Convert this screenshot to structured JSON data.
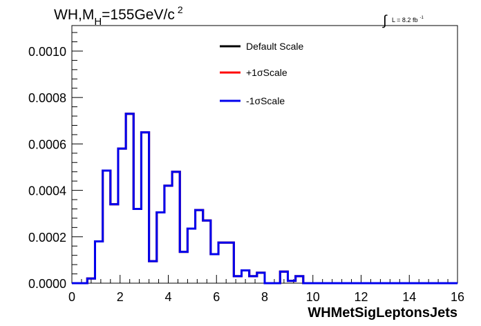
{
  "title": {
    "main_prefix": "WH,M",
    "main_sub": "H",
    "main_rest": "=155GeV/c",
    "main_sup": "2"
  },
  "lumi": {
    "integral": "∫",
    "text": "L = 8.2 fb",
    "sup": "-1"
  },
  "chart_data": {
    "type": "line",
    "title": "WH,MH=155GeV/c2",
    "xlabel": "WHMetSigLeptonsJets",
    "ylabel": "",
    "xlim": [
      0,
      16
    ],
    "ylim": [
      0,
      0.00111
    ],
    "x_ticks": [
      "0",
      "2",
      "4",
      "6",
      "8",
      "10",
      "12",
      "14",
      "16"
    ],
    "y_ticks": [
      "0.0000",
      "0.0002",
      "0.0004",
      "0.0006",
      "0.0008",
      "0.0010"
    ],
    "y_tick_values": [
      0,
      0.0002,
      0.0004,
      0.0006,
      0.0008,
      0.001
    ],
    "bin_width": 0.32,
    "legend_position": "top-center",
    "series": [
      {
        "name": "Default Scale",
        "color": "#000000",
        "bin_edges_start": 0,
        "values": [
          0,
          0,
          2e-05,
          0.00018,
          0.000485,
          0.00034,
          0.00058,
          0.00073,
          0.00032,
          0.00065,
          9.5e-05,
          0.000305,
          0.00042,
          0.00048,
          0.000135,
          0.000235,
          0.000315,
          0.00027,
          0.000125,
          0.000175,
          0.000175,
          3e-05,
          5.5e-05,
          3e-05,
          4.5e-05,
          0,
          0,
          5e-05,
          1e-05,
          3e-05,
          0,
          0,
          0,
          0,
          0,
          0,
          0,
          0,
          0,
          0,
          0,
          0,
          0,
          0,
          0,
          0,
          0,
          0,
          0,
          0
        ]
      },
      {
        "name": "+1σScale",
        "color": "#ff0000",
        "bin_edges_start": 0,
        "values": [
          0,
          0,
          2e-05,
          0.00018,
          0.000485,
          0.00034,
          0.00058,
          0.00073,
          0.00032,
          0.00065,
          9.5e-05,
          0.000305,
          0.00042,
          0.00048,
          0.000135,
          0.000235,
          0.000315,
          0.00027,
          0.000125,
          0.000175,
          0.000175,
          3e-05,
          5.5e-05,
          3e-05,
          4.5e-05,
          0,
          0,
          5e-05,
          1e-05,
          3e-05,
          0,
          0,
          0,
          0,
          0,
          0,
          0,
          0,
          0,
          0,
          0,
          0,
          0,
          0,
          0,
          0,
          0,
          0,
          0,
          0
        ]
      },
      {
        "name": "-1σScale",
        "color": "#0000ee",
        "bin_edges_start": 0,
        "values": [
          0,
          0,
          2e-05,
          0.00018,
          0.000485,
          0.00034,
          0.00058,
          0.00073,
          0.00032,
          0.00065,
          9.5e-05,
          0.000305,
          0.00042,
          0.00048,
          0.000135,
          0.000235,
          0.000315,
          0.00027,
          0.000125,
          0.000175,
          0.000175,
          3e-05,
          5.5e-05,
          3e-05,
          4.5e-05,
          0,
          0,
          5e-05,
          1e-05,
          3e-05,
          0,
          0,
          0,
          0,
          0,
          0,
          0,
          0,
          0,
          0,
          0,
          0,
          0,
          0,
          0,
          0,
          0,
          0,
          0,
          0
        ]
      }
    ]
  }
}
